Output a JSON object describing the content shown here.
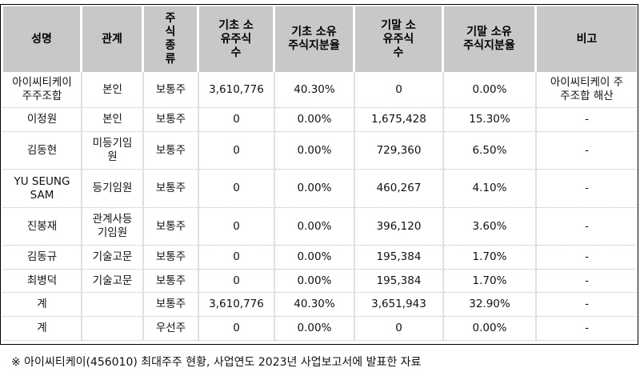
{
  "headers": [
    "성명",
    "관계",
    "주\n식\n종\n류",
    "기초 소\n유주식\n수",
    "기초 소유\n주식지분율",
    "기말 소\n유주식\n수",
    "기말 소유\n주식지분율",
    "비고"
  ],
  "rows": [
    [
      "아이씨티케이\n주주조합",
      "본인",
      "보통주",
      "3,610,776",
      "40.30%",
      "0",
      "0.00%",
      "아이씨티케이 주\n주조합 해산"
    ],
    [
      "이정원",
      "본인",
      "보통주",
      "0",
      "0.00%",
      "1,675,428",
      "15.30%",
      "-"
    ],
    [
      "김동현",
      "미등기임\n원",
      "보통주",
      "0",
      "0.00%",
      "729,360",
      "6.50%",
      "-"
    ],
    [
      "YU SEUNG\nSAM",
      "등기임원",
      "보통주",
      "0",
      "0.00%",
      "460,267",
      "4.10%",
      "-"
    ],
    [
      "진봉재",
      "관계사등\n기임원",
      "보통주",
      "0",
      "0.00%",
      "396,120",
      "3.60%",
      "-"
    ],
    [
      "김동규",
      "기술고문",
      "보통주",
      "0",
      "0.00%",
      "195,384",
      "1.70%",
      "-"
    ],
    [
      "최병덕",
      "기술고문",
      "보통주",
      "0",
      "0.00%",
      "195,384",
      "1.70%",
      "-"
    ],
    [
      "계",
      "",
      "보통주",
      "3,610,776",
      "40.30%",
      "3,651,943",
      "32.90%",
      "-"
    ],
    [
      "계",
      "",
      "우선주",
      "0",
      "0.00%",
      "0",
      "0.00%",
      "-"
    ]
  ],
  "footnote": "※ 아이씨티케이(456010) 최대주주 현황, 사업연도 2023년 사업보고서에 발표한 자료"
}
